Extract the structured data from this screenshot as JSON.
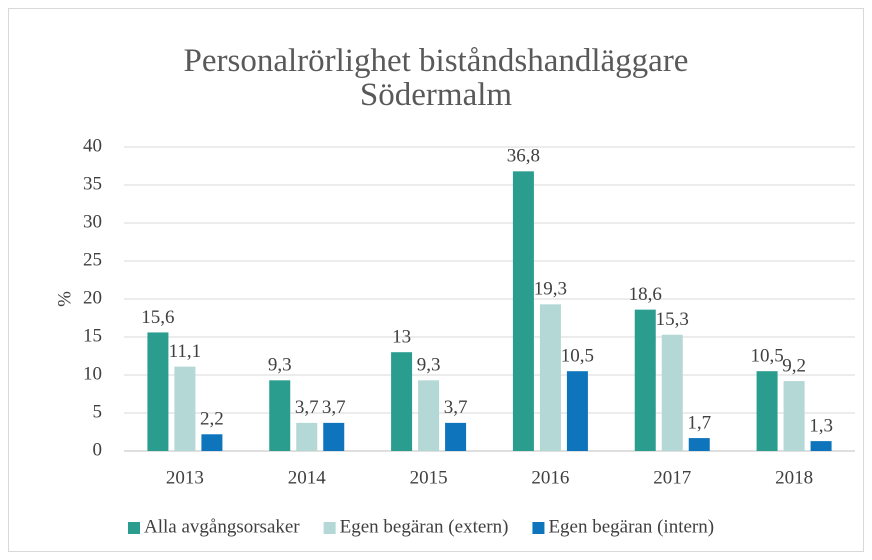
{
  "chart_data": {
    "type": "bar",
    "title": "Personalrörlighet biståndshandläggare Södermalm",
    "y_label": "%",
    "categories": [
      "2013",
      "2014",
      "2015",
      "2016",
      "2017",
      "2018"
    ],
    "series": [
      {
        "name": "Alla avgångsorsaker",
        "color": "#2a9d8f",
        "values": [
          15.6,
          9.3,
          13,
          36.8,
          18.6,
          10.5
        ],
        "value_labels": [
          "15,6",
          "9,3",
          "13",
          "36,8",
          "18,6",
          "10,5"
        ]
      },
      {
        "name": "Egen begäran (extern)",
        "color": "#b4d8d5",
        "values": [
          11.1,
          3.7,
          9.3,
          19.3,
          15.3,
          9.2
        ],
        "value_labels": [
          "11,1",
          "3,7",
          "9,3",
          "19,3",
          "15,3",
          "9,2"
        ]
      },
      {
        "name": "Egen begäran (intern)",
        "color": "#0e75bc",
        "values": [
          2.2,
          3.7,
          3.7,
          10.5,
          1.7,
          1.3
        ],
        "value_labels": [
          "2,2",
          "3,7",
          "3,7",
          "10,5",
          "1,7",
          "1,3"
        ]
      }
    ],
    "ylim": [
      0,
      40
    ],
    "yticks": [
      0,
      5,
      10,
      15,
      20,
      25,
      30,
      35,
      40
    ],
    "grid": true,
    "legend": "bottom"
  }
}
